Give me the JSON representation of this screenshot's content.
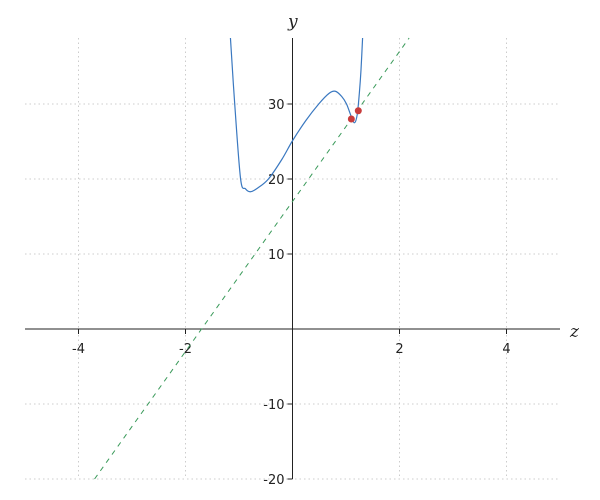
{
  "chart_data": {
    "type": "line",
    "xlabel": "z",
    "ylabel": "y",
    "xlim": [
      -5,
      5
    ],
    "ylim": [
      -20,
      38.8
    ],
    "grid": true,
    "xticks": [
      -4,
      -2,
      2,
      4
    ],
    "yticks": [
      -20,
      -10,
      10,
      20,
      30
    ],
    "colors": {
      "curve": "#3a78c0",
      "line": "#3a9a5a",
      "points": "#c83c3c",
      "grid": "#cccccc",
      "axis": "#222222"
    },
    "series": [
      {
        "style": "solid",
        "x": [
          -1.16,
          -1.08,
          -0.97,
          -0.88,
          -0.785,
          -0.65,
          -0.45,
          -0.2,
          0,
          0.25,
          0.49,
          0.68,
          0.8,
          0.92,
          1.01,
          1.1,
          1.16,
          1.21,
          1.25,
          1.28,
          1.31
        ],
        "y": [
          38.8,
          30,
          20,
          18.7,
          18.3,
          18.8,
          20,
          22.6,
          25.1,
          27.8,
          30,
          31.4,
          31.7,
          31.0,
          30,
          28.3,
          27.5,
          28.6,
          31.5,
          34.5,
          38.8
        ]
      },
      {
        "style": "dashed",
        "x": [
          -3.7,
          2.18
        ],
        "y": [
          -20,
          38.8
        ]
      }
    ],
    "points": {
      "x": [
        1.1,
        1.23
      ],
      "y": [
        28.0,
        29.1
      ]
    }
  }
}
